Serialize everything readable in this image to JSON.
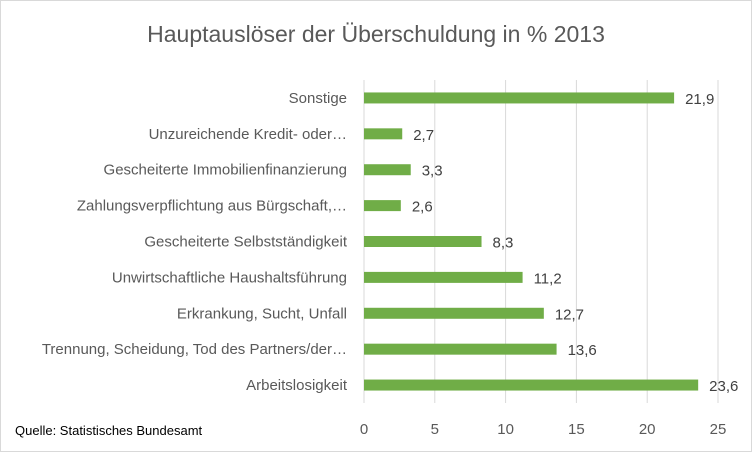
{
  "chart_data": {
    "type": "bar",
    "orientation": "horizontal",
    "title": "Hauptauslöser der Überschuldung in % 2013",
    "categories": [
      "Sonstige",
      "Unzureichende Kredit- oder…",
      "Gescheiterte Immobilienfinanzierung",
      "Zahlungsverpflichtung aus Bürgschaft,…",
      "Gescheiterte Selbstständigkeit",
      "Unwirtschaftliche Haushaltsführung",
      "Erkrankung, Sucht, Unfall",
      "Trennung, Scheidung, Tod des Partners/der…",
      "Arbeitslosigkeit"
    ],
    "values": [
      21.9,
      2.7,
      3.3,
      2.6,
      8.3,
      11.2,
      12.7,
      13.6,
      23.6
    ],
    "value_labels": [
      "21,9",
      "2,7",
      "3,3",
      "2,6",
      "8,3",
      "11,2",
      "12,7",
      "13,6",
      "23,6"
    ],
    "x_ticks": [
      0,
      5,
      10,
      15,
      20,
      25
    ],
    "xlim": [
      0,
      25
    ],
    "xlabel": "",
    "ylabel": "",
    "grid": "vertical",
    "legend": "none",
    "bar_color": "#70ad47",
    "source": "Quelle: Statistisches Bundesamt"
  }
}
